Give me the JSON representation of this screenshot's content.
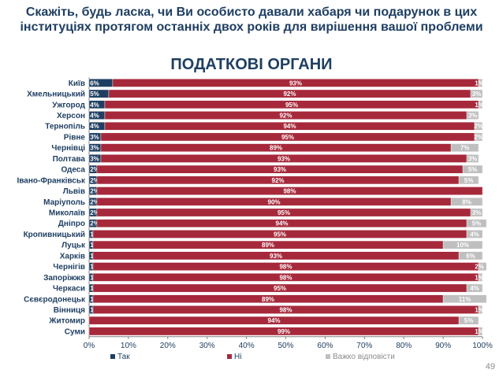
{
  "page": {
    "title_line1": "Скажіть, будь ласка, чи Ви особисто давали хабаря чи подарунок в цих",
    "title_line2": "інституціях протягом останніх двох років для вирішення вашої проблеми",
    "subtitle": "ПОДАТКОВІ ОРГАНИ",
    "page_number": "49"
  },
  "colors": {
    "yes": "#1f3f62",
    "no": "#a6293b",
    "hard": "#bfbfbf",
    "axis_text": "#1f3f62"
  },
  "chart_data": {
    "type": "bar",
    "orientation": "horizontal",
    "stacked": true,
    "categories": [
      "Київ",
      "Хмельницький",
      "Ужгород",
      "Херсон",
      "Тернопіль",
      "Рівне",
      "Чернівці",
      "Полтава",
      "Одеса",
      "Івано-Франківськ",
      "Львів",
      "Маріуполь",
      "Миколаїв",
      "Дніпро",
      "Кропивницький",
      "Луцьк",
      "Харків",
      "Чернігів",
      "Запоріжжя",
      "Черкаси",
      "Сєвєродонецьк",
      "Вінниця",
      "Житомир",
      "Суми"
    ],
    "series": [
      {
        "name": "Так",
        "values": [
          6,
          5,
          4,
          4,
          4,
          3,
          3,
          3,
          2,
          2,
          2,
          2,
          2,
          2,
          1,
          1,
          1,
          1,
          1,
          1,
          1,
          1,
          0,
          0
        ],
        "labels": [
          "6%",
          "5%",
          "4%",
          "4%",
          "4%",
          "3%",
          "3%",
          "3%",
          "2%",
          "2%",
          "2%",
          "2%",
          "2%",
          "2%",
          "1%",
          "1%",
          "1%",
          "1%",
          "1%",
          "1%",
          "1%",
          "1%",
          "",
          ""
        ]
      },
      {
        "name": "Ні",
        "values": [
          93,
          92,
          95,
          92,
          94,
          95,
          89,
          93,
          93,
          92,
          98,
          90,
          95,
          94,
          95,
          89,
          93,
          98,
          98,
          95,
          89,
          98,
          94,
          99
        ],
        "labels": [
          "93%",
          "92%",
          "95%",
          "92%",
          "94%",
          "95%",
          "89%",
          "93%",
          "93%",
          "92%",
          "98%",
          "90%",
          "95%",
          "94%",
          "95%",
          "89%",
          "93%",
          "98%",
          "98%",
          "95%",
          "89%",
          "98%",
          "94%",
          "99%"
        ]
      },
      {
        "name": "Важко відповісти",
        "values": [
          1,
          3,
          1,
          3,
          2,
          2,
          7,
          3,
          5,
          5,
          0,
          8,
          3,
          5,
          4,
          10,
          6,
          2,
          1,
          4,
          11,
          1,
          5,
          1
        ],
        "labels": [
          "1%",
          "3%",
          "1%",
          "3%",
          "2%",
          "2%",
          "7%",
          "3%",
          "5%",
          "5%",
          "",
          "8%",
          "3%",
          "5%",
          "4%",
          "10%",
          "6%",
          "2%",
          "1%",
          "4%",
          "11%",
          "1%",
          "5%",
          "1%"
        ]
      }
    ],
    "xlim": [
      0,
      100
    ],
    "xticks": [
      "0%",
      "10%",
      "20%",
      "30%",
      "40%",
      "50%",
      "60%",
      "70%",
      "80%",
      "90%",
      "100%"
    ],
    "legend": [
      "Так",
      "Ні",
      "Важко відповісти"
    ],
    "legend_position": "bottom"
  }
}
